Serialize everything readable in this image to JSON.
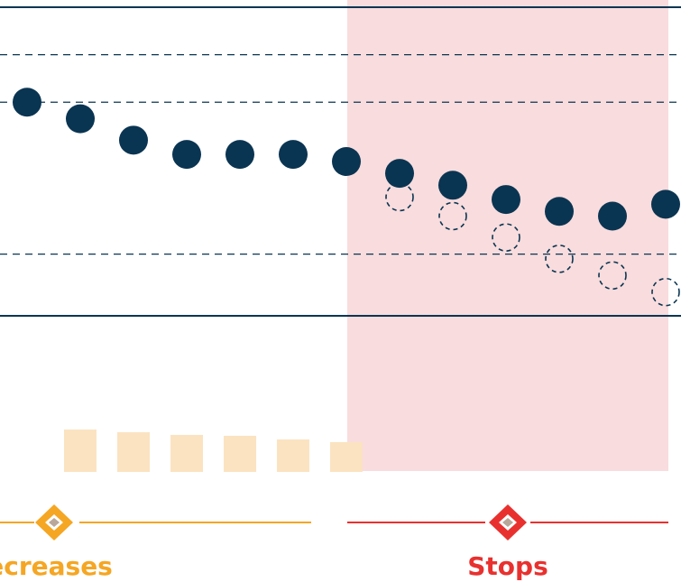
{
  "chart_data": {
    "type": "scatter",
    "x": [
      1,
      2,
      3,
      4,
      5,
      6,
      7,
      8,
      9,
      10,
      11,
      12,
      13
    ],
    "series": [
      {
        "values": [
          100.0,
          99.65,
          99.2,
          98.9,
          98.9,
          98.9,
          98.75,
          98.5,
          98.25,
          97.95,
          97.7,
          97.6,
          97.85
        ]
      },
      {
        "values": [
          null,
          null,
          null,
          null,
          null,
          null,
          null,
          98.0,
          97.6,
          97.15,
          96.7,
          96.35,
          96.0
        ]
      }
    ],
    "bars": [
      0.0,
      47,
      44,
      41,
      40,
      36,
      33
    ],
    "reference_lines": [
      101.0,
      100.0,
      96.8
    ],
    "ylim": [
      95.5,
      102.0
    ],
    "phases": [
      {
        "label": "Decreases",
        "color": "#f5a623"
      },
      {
        "label": "Stops",
        "color": "#e8312f"
      }
    ],
    "colors": {
      "dot": "#0a3552",
      "bar": "#fbe3c1",
      "highlight": "#f9dcdd",
      "axis": "#0a3552"
    }
  }
}
